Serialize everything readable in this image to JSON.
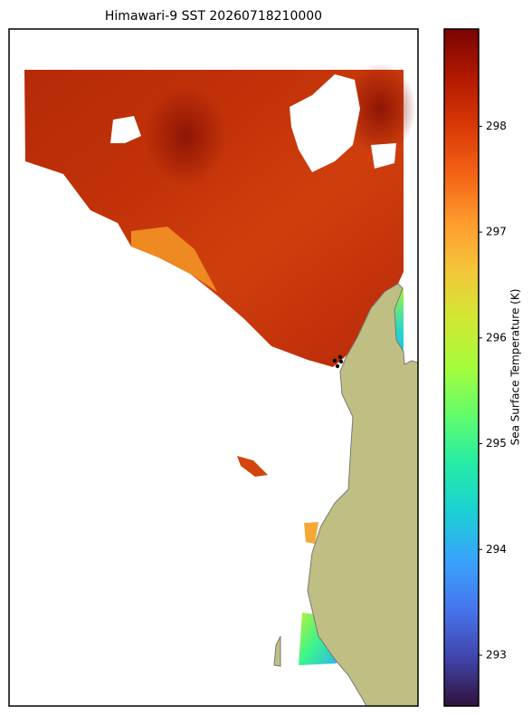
{
  "chart_data": {
    "type": "map",
    "title": "Himawari-9 SST 20260718210000",
    "colorbar": {
      "label": "Sea Surface Temperature (K)",
      "lim": [
        292.52,
        298.92
      ],
      "ticks": [
        293,
        294,
        295,
        296,
        297,
        298
      ],
      "colormap": "turbo"
    }
  }
}
